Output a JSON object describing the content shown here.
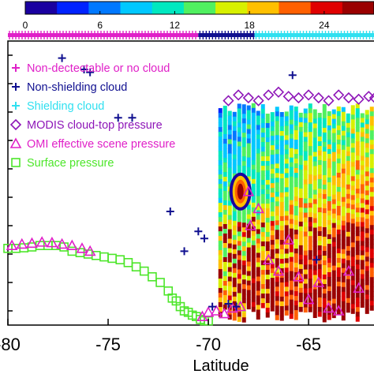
{
  "chart_data": {
    "type": "scatter",
    "title": "",
    "xlabel": "Latitude",
    "ylabel": "",
    "xlim": [
      -80,
      -61.5
    ],
    "ylim": [
      1050,
      50
    ],
    "x_ticks": [
      {
        "value": -80,
        "label": "-80"
      },
      {
        "value": -75,
        "label": "-75"
      },
      {
        "value": -70,
        "label": "-70"
      },
      {
        "value": -65,
        "label": "-65"
      }
    ],
    "colorbar": {
      "range": [
        0,
        28
      ],
      "ticks": [
        {
          "value": 0,
          "label": "0"
        },
        {
          "value": 6,
          "label": "6"
        },
        {
          "value": 12,
          "label": "12"
        },
        {
          "value": 18,
          "label": "18"
        },
        {
          "value": 24,
          "label": "24"
        }
      ],
      "colors": [
        "#1a00a0",
        "#0022ff",
        "#0078ff",
        "#00c8ff",
        "#00e8c0",
        "#50f060",
        "#d8f000",
        "#ffc000",
        "#ff6000",
        "#e00000",
        "#9a0000"
      ]
    },
    "legend": {
      "placement": "top-left",
      "items": [
        {
          "name": "Non-dectectable or no cloud",
          "marker": "plus",
          "color": "#e020c8"
        },
        {
          "name": "Non-shielding cloud",
          "marker": "plus",
          "color": "#101090"
        },
        {
          "name": "Shielding cloud",
          "marker": "plus",
          "color": "#30e0f0"
        },
        {
          "name": "MODIS cloud-top pressure",
          "marker": "diamond",
          "color": "#8e16b8"
        },
        {
          "name": "OMI effective scene pressure",
          "marker": "triangle",
          "color": "#e020c8"
        },
        {
          "name": "Surface pressure",
          "marker": "square",
          "color": "#4de62a"
        }
      ]
    },
    "cloud_flag_strip": [
      {
        "name": "Non-dectectable or no cloud",
        "x_from": -80,
        "x_to": -70.5,
        "color": "#e020c8"
      },
      {
        "name": "Non-shielding cloud",
        "x_from": -70.5,
        "x_to": -67.7,
        "color": "#101090"
      },
      {
        "name": "Shielding cloud",
        "x_from": -67.7,
        "x_to": -61.5,
        "color": "#30e0f0"
      }
    ],
    "series": [
      {
        "name": "Surface pressure",
        "x": [
          -80.0,
          -79.6,
          -79.2,
          -78.8,
          -78.4,
          -78.0,
          -77.6,
          -77.2,
          -76.8,
          -76.4,
          -76.0,
          -75.6,
          -75.2,
          -74.8,
          -74.4,
          -74.0,
          -73.6,
          -73.2,
          -72.8,
          -72.4,
          -72.0,
          -71.8,
          -71.6,
          -71.4,
          -71.2,
          -71.0,
          -70.8,
          -70.6,
          -70.4,
          -70.2,
          -70.0
        ],
        "y": [
          780,
          780,
          778,
          775,
          770,
          770,
          770,
          775,
          790,
          795,
          800,
          805,
          810,
          815,
          820,
          830,
          845,
          860,
          880,
          900,
          930,
          955,
          965,
          985,
          1000,
          1005,
          1015,
          1020,
          1030,
          1035,
          1035
        ]
      },
      {
        "name": "OMI effective scene pressure",
        "x": [
          -79.8,
          -79.3,
          -78.8,
          -78.3,
          -77.8,
          -77.3,
          -76.8,
          -76.3,
          -75.9,
          -70.3,
          -70.0,
          -69.6,
          -69.2,
          -68.8,
          -68.4,
          -68.0,
          -67.9,
          -67.5,
          -67.0,
          -66.5,
          -66.0,
          -65.5,
          -65.0,
          -64.5,
          -64.0,
          -63.5,
          -63.0,
          -62.5
        ],
        "y": [
          770,
          765,
          762,
          758,
          760,
          765,
          770,
          780,
          790,
          1020,
          1005,
          1000,
          1010,
          990,
          985,
          580,
          700,
          640,
          820,
          860,
          750,
          880,
          960,
          900,
          990,
          1000,
          860,
          920
        ]
      },
      {
        "name": "MODIS cloud-top pressure",
        "x": [
          -69.0,
          -68.5,
          -68.0,
          -67.5,
          -67.0,
          -66.5,
          -66.0,
          -65.5,
          -65.0,
          -64.5,
          -64.0,
          -63.5,
          -63.0,
          -62.5,
          -62.0,
          -61.7
        ],
        "y": [
          260,
          240,
          250,
          260,
          240,
          230,
          245,
          250,
          240,
          250,
          260,
          240,
          250,
          255,
          245,
          250
        ]
      },
      {
        "name": "Non-shielding cloud",
        "x": [
          -77.3,
          -76.2,
          -75.9,
          -74.5,
          -73.8,
          -71.9,
          -71.2,
          -70.5,
          -70.2,
          -69.8,
          -69.0,
          -68.6,
          -65.8,
          -64.6
        ],
        "y": [
          110,
          150,
          160,
          320,
          320,
          650,
          790,
          720,
          745,
          985,
          975,
          985,
          170,
          820
        ]
      }
    ],
    "heatmap_region": {
      "x_from": -69.5,
      "x_to": -61.5,
      "y_top": 245,
      "y_bottom": 1035,
      "hotspot": {
        "x": -68.4,
        "y": 580
      }
    }
  }
}
